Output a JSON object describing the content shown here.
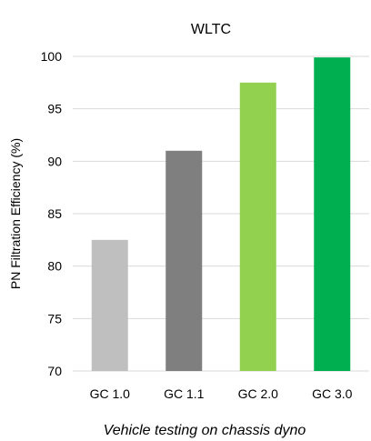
{
  "chart_data": {
    "type": "bar",
    "title": "WLTC",
    "ylabel": "PN Filtration Efficiency (%)",
    "xlabel": "Vehicle testing on chassis dyno",
    "categories": [
      "GC 1.0",
      "GC 1.1",
      "GC 2.0",
      "GC 3.0"
    ],
    "values": [
      82.5,
      91.0,
      97.5,
      99.9
    ],
    "colors": [
      "#bfbfbf",
      "#7f7f7f",
      "#92d050",
      "#00b050"
    ],
    "ylim": [
      70,
      100
    ],
    "yticks": [
      70,
      75,
      80,
      85,
      90,
      95,
      100
    ],
    "grid": true,
    "legend": "none"
  }
}
